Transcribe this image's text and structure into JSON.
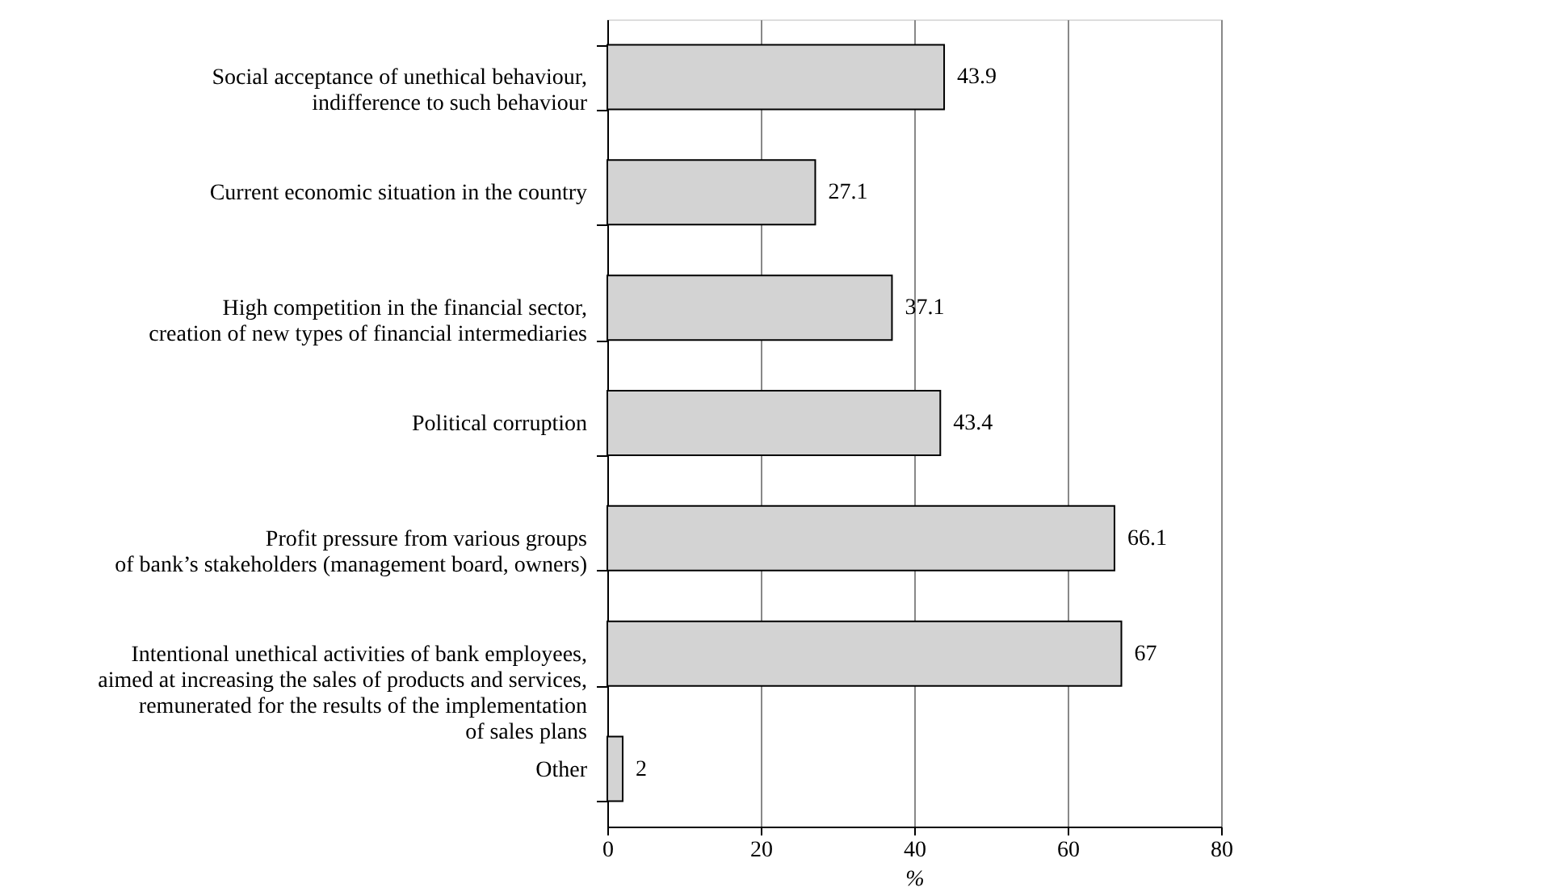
{
  "chart_data": {
    "type": "bar",
    "orientation": "horizontal",
    "xlabel": "%",
    "categories": [
      "Social acceptance of unethical behaviour,\nindifference to such behaviour",
      "Current economic situation in the country",
      "High competition in the financial sector,\ncreation of new types of financial intermediaries",
      "Political corruption",
      "Profit pressure from various groups\nof bank’s stakeholders (management board, owners)",
      "Intentional unethical activities of bank employees,\naimed at increasing the sales of products and services,\nremunerated for the results of the implementation\nof sales plans",
      "Other"
    ],
    "values": [
      43.9,
      27.1,
      37.1,
      43.4,
      66.1,
      67,
      2
    ],
    "color": "#d3d3d3",
    "xlim": [
      0,
      80
    ],
    "xticks": [
      0,
      20,
      40,
      60,
      80
    ],
    "grid": "x",
    "data_labels": true
  }
}
